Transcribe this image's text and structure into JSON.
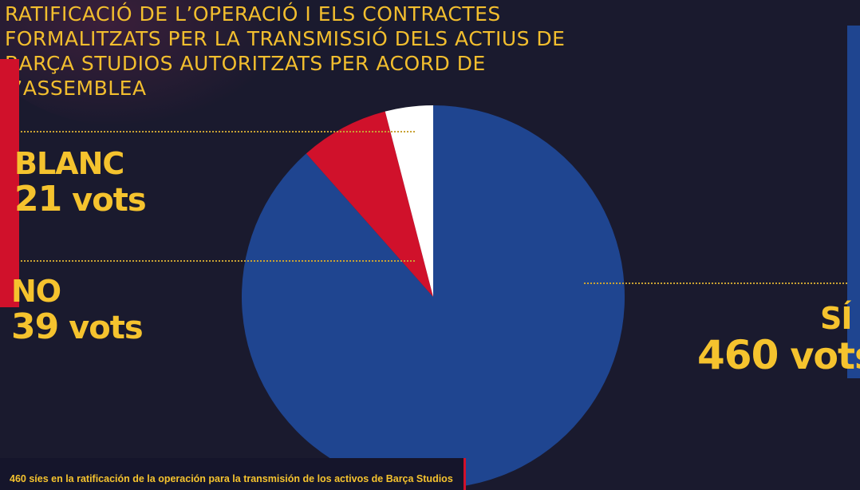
{
  "title": "RATIFICACIÓ DE L’OPERACIÓ I ELS CONTRACTES FORMALITZATS PER LA TRANSMISSIÓ DELS ACTIUS DE BARÇA STUDIOS AUTORITZATS PER ACORD DE L’ASSEMBLEA",
  "caption": "460 síes en la ratificación de la operación para la transmisión de los activos de Barça Studios",
  "labels": {
    "blanc": {
      "category": "BLANC",
      "count": "21",
      "unit": "vots"
    },
    "no": {
      "category": "NO",
      "count": "39",
      "unit": "vots"
    },
    "si": {
      "category": "SÍ",
      "count": "460",
      "unit": "vots"
    }
  },
  "colors": {
    "background": "#1a1a2e",
    "accent_yellow": "#f5c32e",
    "blue": "#1f4590",
    "red": "#d0112b",
    "white": "#ffffff"
  },
  "chart_data": {
    "type": "pie",
    "title": "RATIFICACIÓ DE L’OPERACIÓ I ELS CONTRACTES FORMALITZATS PER LA TRANSMISSIÓ DELS ACTIUS DE BARÇA STUDIOS AUTORITZATS PER ACORD DE L’ASSEMBLEA",
    "slices": [
      {
        "label": "SÍ",
        "value": 460,
        "color": "#1f4590"
      },
      {
        "label": "NO",
        "value": 39,
        "color": "#d0112b"
      },
      {
        "label": "BLANC",
        "value": 21,
        "color": "#ffffff"
      }
    ],
    "start": "top, clockwise"
  }
}
